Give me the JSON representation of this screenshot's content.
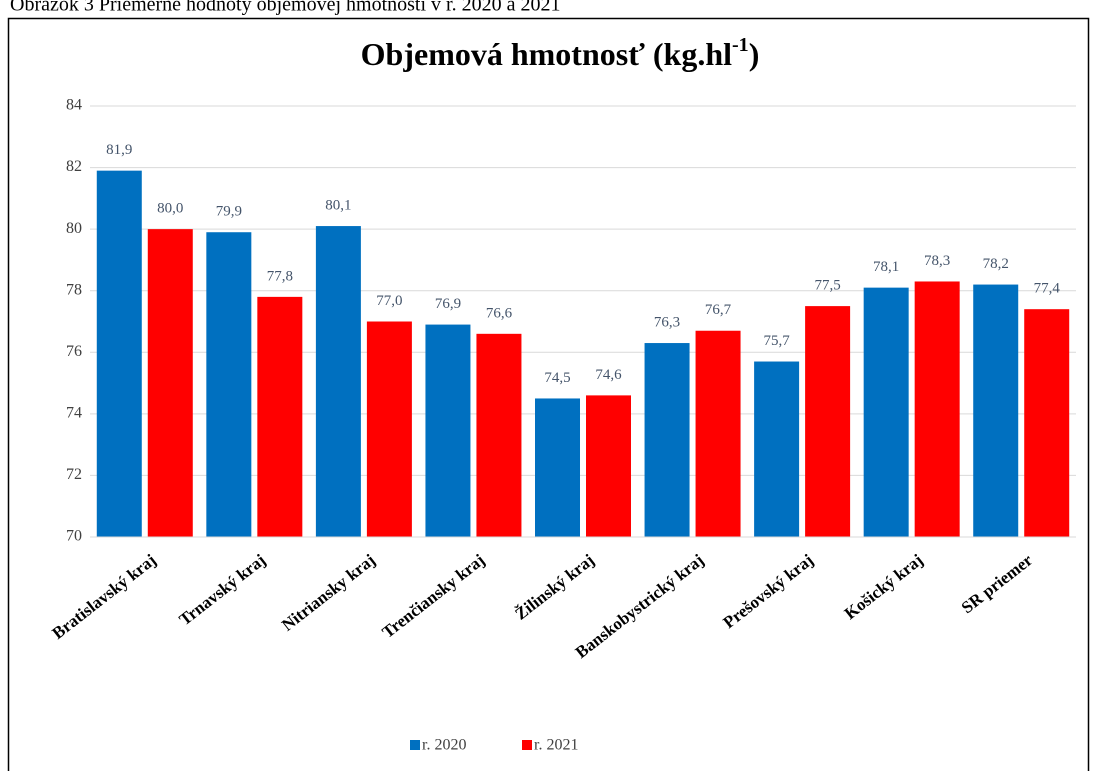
{
  "chart_data": {
    "type": "bar",
    "caption": "Obrázok 3 Priemerné hodnoty objemovej hmotnosti v r. 2020 a 2021",
    "title": "Objemová hmotnosť  (kg.hl",
    "title_superscript": "-1",
    "title_suffix": ")",
    "categories": [
      "Bratislavský kraj",
      "Trnavský kraj",
      "Nitriansky kraj",
      "Trenčiansky kraj",
      "Žilinský kraj",
      "Banskobystrický kraj",
      "Prešovský kraj",
      "Košický kraj",
      "SR priemer"
    ],
    "series": [
      {
        "name": "r. 2020",
        "color": "#0070c0",
        "values": [
          81.9,
          79.9,
          80.1,
          76.9,
          74.5,
          76.3,
          75.7,
          78.1,
          78.2
        ],
        "value_labels": [
          "81,9",
          "79,9",
          "80,1",
          "76,9",
          "74,5",
          "76,3",
          "75,7",
          "78,1",
          "78,2"
        ]
      },
      {
        "name": "r. 2021",
        "color": "#ff0000",
        "values": [
          80.0,
          77.8,
          77.0,
          76.6,
          74.6,
          76.7,
          77.5,
          78.3,
          77.4
        ],
        "value_labels": [
          "80,0",
          "77,8",
          "77,0",
          "76,6",
          "74,6",
          "76,7",
          "77,5",
          "78,3",
          "77,4"
        ]
      }
    ],
    "ylim": [
      70,
      84
    ],
    "yticks": [
      70,
      72,
      74,
      76,
      78,
      80,
      82,
      84
    ],
    "grid": true,
    "legend": "bottom"
  }
}
